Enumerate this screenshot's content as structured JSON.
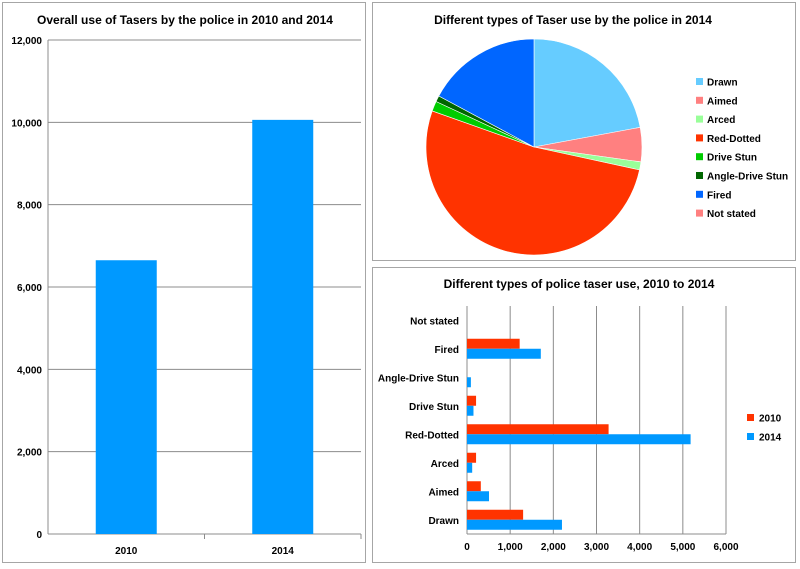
{
  "chart_data": [
    {
      "type": "bar",
      "title": "Overall use of Tasers by the police in 2010 and 2014",
      "categories": [
        "2010",
        "2014"
      ],
      "values": [
        6650,
        10060
      ],
      "ylim": [
        0,
        12000
      ],
      "yticks": [
        "0",
        "2,000",
        "4,000",
        "6,000",
        "8,000",
        "10,000",
        "12,000"
      ],
      "grid": true,
      "colors": [
        "#0099ff"
      ]
    },
    {
      "type": "pie",
      "title": "Different types of Taser use by the police in 2014",
      "legend_position": "right",
      "slices": [
        {
          "label": "Drawn",
          "value": 2200,
          "color": "#66ccff"
        },
        {
          "label": "Aimed",
          "value": 510,
          "color": "#ff8080"
        },
        {
          "label": "Arced",
          "value": 120,
          "color": "#99ff99"
        },
        {
          "label": "Red-Dotted",
          "value": 5180,
          "color": "#ff3300"
        },
        {
          "label": "Drive Stun",
          "value": 150,
          "color": "#00cc00"
        },
        {
          "label": "Angle-Drive Stun",
          "value": 90,
          "color": "#006600"
        },
        {
          "label": "Fired",
          "value": 1710,
          "color": "#0066ff"
        },
        {
          "label": "Not stated",
          "value": 0,
          "color": "#ff8080"
        }
      ]
    },
    {
      "type": "bar",
      "orientation": "horizontal",
      "title": "Different types of police taser use, 2010 to 2014",
      "categories": [
        "Drawn",
        "Aimed",
        "Arced",
        "Red-Dotted",
        "Drive Stun",
        "Angle-Drive Stun",
        "Fired",
        "Not stated"
      ],
      "series": [
        {
          "name": "2010",
          "color": "#ff3300",
          "values": [
            1300,
            320,
            210,
            3280,
            210,
            0,
            1220,
            0
          ]
        },
        {
          "name": "2014",
          "color": "#0099ff",
          "values": [
            2200,
            510,
            120,
            5180,
            150,
            90,
            1710,
            0
          ]
        }
      ],
      "xlim": [
        0,
        6000
      ],
      "xticks": [
        "0",
        "1,000",
        "2,000",
        "3,000",
        "4,000",
        "5,000",
        "6,000"
      ],
      "legend_position": "right",
      "grid": true
    }
  ]
}
